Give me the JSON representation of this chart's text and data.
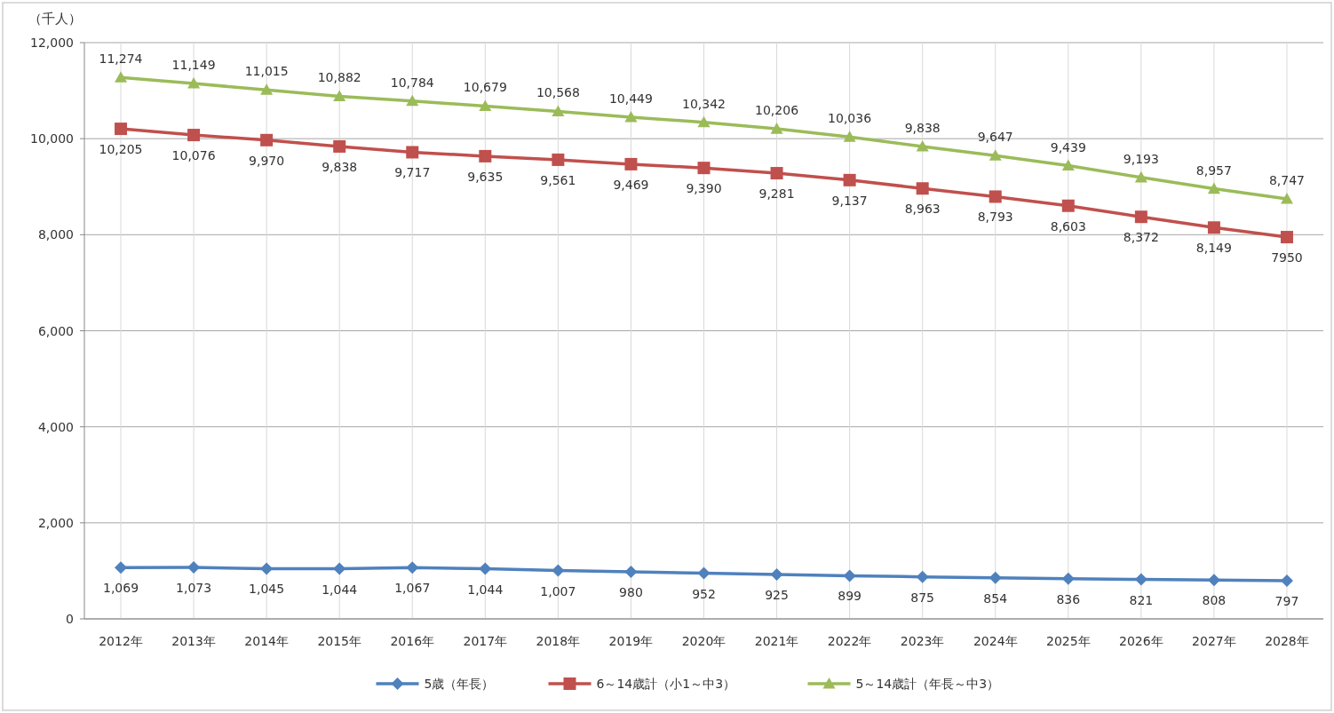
{
  "chart_data": {
    "type": "line",
    "ylabel": "（千人）",
    "categories": [
      "2012年",
      "2013年",
      "2014年",
      "2015年",
      "2016年",
      "2017年",
      "2018年",
      "2019年",
      "2020年",
      "2021年",
      "2022年",
      "2023年",
      "2024年",
      "2025年",
      "2026年",
      "2027年",
      "2028年"
    ],
    "series": [
      {
        "name": "5歳（年長）",
        "color": "#4f81bd",
        "marker": "diamond",
        "values": [
          1069,
          1073,
          1045,
          1044,
          1067,
          1044,
          1007,
          980,
          952,
          925,
          899,
          875,
          854,
          836,
          821,
          808,
          797
        ],
        "value_labels": [
          "1,069",
          "1,073",
          "1,045",
          "1,044",
          "1,067",
          "1,044",
          "1,007",
          "980",
          "952",
          "925",
          "899",
          "875",
          "854",
          "836",
          "821",
          "808",
          "797"
        ]
      },
      {
        "name": "6～14歳計（小1～中3）",
        "color": "#c0504d",
        "marker": "square",
        "values": [
          10205,
          10076,
          9970,
          9838,
          9717,
          9635,
          9561,
          9469,
          9390,
          9281,
          9137,
          8963,
          8793,
          8603,
          8372,
          8149,
          7950
        ],
        "value_labels": [
          "10,205",
          "10,076",
          "9,970",
          "9,838",
          "9,717",
          "9,635",
          "9,561",
          "9,469",
          "9,390",
          "9,281",
          "9,137",
          "8,963",
          "8,793",
          "8,603",
          "8,372",
          "8,149",
          "7950"
        ]
      },
      {
        "name": "5～14歳計（年長～中3）",
        "color": "#9bbb59",
        "marker": "triangle",
        "values": [
          11274,
          11149,
          11015,
          10882,
          10784,
          10679,
          10568,
          10449,
          10342,
          10206,
          10036,
          9838,
          9647,
          9439,
          9193,
          8957,
          8747
        ],
        "value_labels": [
          "11,274",
          "11,149",
          "11,015",
          "10,882",
          "10,784",
          "10,679",
          "10,568",
          "10,449",
          "10,342",
          "10,206",
          "10,036",
          "9,838",
          "9,647",
          "9,439",
          "9,193",
          "8,957",
          "8,747"
        ]
      }
    ],
    "ylim": [
      0,
      12000
    ],
    "yticks": [
      {
        "value": 0,
        "label": "0"
      },
      {
        "value": 2000,
        "label": "2,000"
      },
      {
        "value": 4000,
        "label": "4,000"
      },
      {
        "value": 6000,
        "label": "6,000"
      },
      {
        "value": 8000,
        "label": "8,000"
      },
      {
        "value": 10000,
        "label": "10,000"
      },
      {
        "value": 12000,
        "label": "12,000"
      }
    ],
    "grid": true,
    "legend": "bottom",
    "line_style": "solid"
  }
}
